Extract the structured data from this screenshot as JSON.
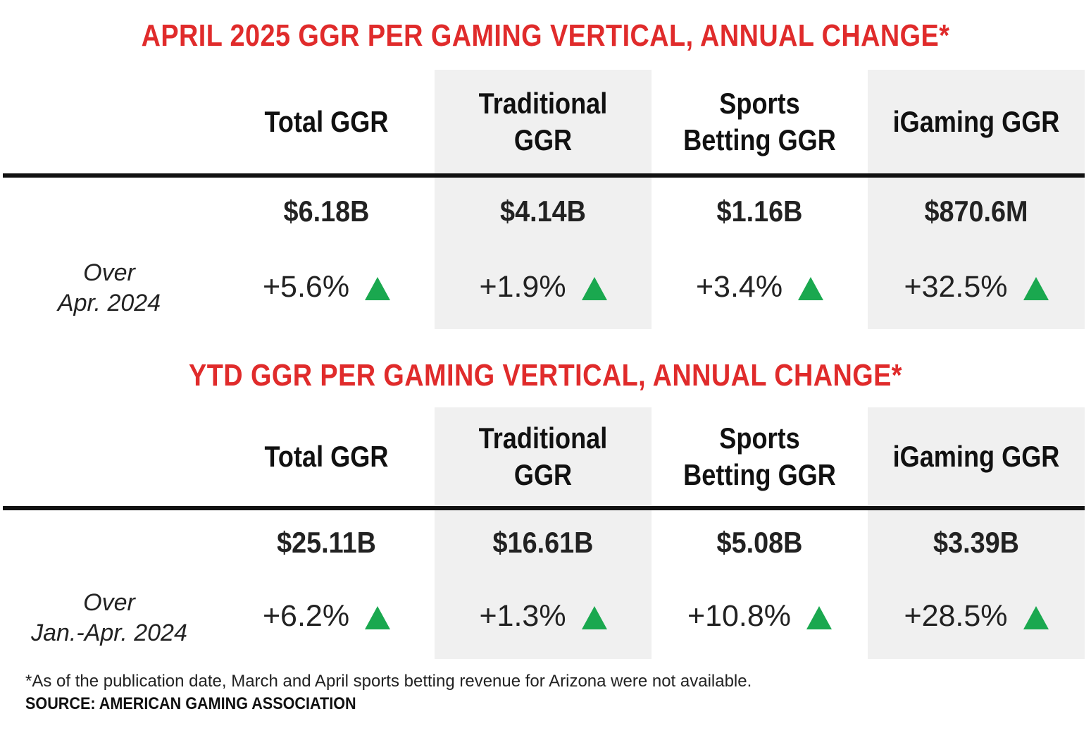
{
  "colors": {
    "title": "#e02b2b",
    "shade": "#f0f0f0",
    "up_arrow": "#1aa84f",
    "rule": "#111111"
  },
  "chart_data": [
    {
      "type": "table",
      "title": "APRIL 2025 GGR PER GAMING VERTICAL, ANNUAL CHANGE*",
      "columns": [
        "Total GGR",
        "Traditional GGR",
        "Sports Betting GGR",
        "iGaming GGR"
      ],
      "values": [
        "$6.18B",
        "$4.14B",
        "$1.16B",
        "$870.6M"
      ],
      "change_label": [
        "Over",
        "Apr. 2024"
      ],
      "changes": [
        "+5.6%",
        "+1.9%",
        "+3.4%",
        "+32.5%"
      ],
      "change_direction": [
        "up",
        "up",
        "up",
        "up"
      ]
    },
    {
      "type": "table",
      "title": "YTD GGR PER GAMING VERTICAL, ANNUAL CHANGE*",
      "columns": [
        "Total GGR",
        "Traditional GGR",
        "Sports Betting GGR",
        "iGaming GGR"
      ],
      "values": [
        "$25.11B",
        "$16.61B",
        "$5.08B",
        "$3.39B"
      ],
      "change_label": [
        "Over",
        "Jan.-Apr. 2024"
      ],
      "changes": [
        "+6.2%",
        "+1.3%",
        "+10.8%",
        "+28.5%"
      ],
      "change_direction": [
        "up",
        "up",
        "up",
        "up"
      ]
    }
  ],
  "headers_display": {
    "col1": [
      "Total GGR"
    ],
    "col2": [
      "Traditional",
      "GGR"
    ],
    "col3": [
      "Sports",
      "Betting GGR"
    ],
    "col4": [
      "iGaming GGR"
    ]
  },
  "footnote": "*As of the publication date, March and April sports betting revenue for Arizona were not available.",
  "source": "SOURCE: AMERICAN GAMING ASSOCIATION"
}
